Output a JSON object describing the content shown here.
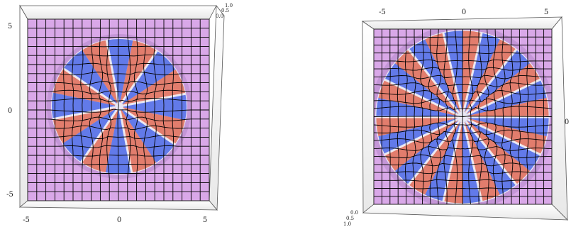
{
  "chart_data": [
    {
      "type": "surface3d-topview",
      "view": "top-down",
      "petals": 8,
      "x_ticks": [
        "-5",
        "0",
        "5"
      ],
      "y_ticks": [
        "5",
        "0",
        "-5"
      ],
      "z_ticks": [
        "1.0",
        "0.5",
        "0.0"
      ],
      "x_range": [
        -6.5,
        6.5
      ],
      "y_range": [
        -6.5,
        6.5
      ],
      "z_range": [
        0,
        1
      ],
      "grid_lines": 20,
      "colors": {
        "base": "#d9a8e8",
        "peak_warm": "#e06a55",
        "peak_cool": "#4a66e6",
        "edge": "#f4f4f8",
        "mesh": "#000000"
      }
    },
    {
      "type": "surface3d-topview",
      "view": "bottom-up",
      "petals": 14,
      "x_ticks": [
        "-5",
        "0",
        "5"
      ],
      "y_ticks": [
        "",
        "0",
        ""
      ],
      "z_ticks": [
        "1.0",
        "0.5",
        "0.0"
      ],
      "x_range": [
        -6.5,
        6.5
      ],
      "y_range": [
        -6.5,
        6.5
      ],
      "z_range": [
        0,
        1
      ],
      "grid_lines": 22,
      "colors": {
        "base": "#d9a8e8",
        "peak_warm": "#e06a55",
        "peak_cool": "#4a66e6",
        "edge": "#f4f4f8",
        "mesh": "#000000"
      }
    }
  ]
}
